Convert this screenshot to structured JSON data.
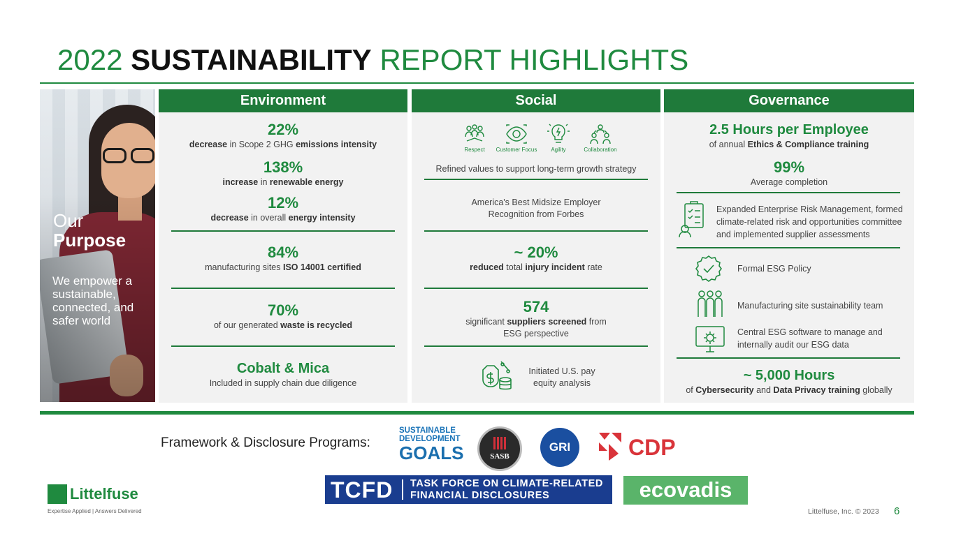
{
  "title": {
    "part1": "2022 ",
    "bold": "SUSTAINABILITY",
    "part2": " REPORT HIGHLIGHTS"
  },
  "purpose": {
    "line1": "Our",
    "line2": "Purpose",
    "text": "We empower a sustainable, connected, and safer world"
  },
  "environment": {
    "header": "Environment",
    "items": [
      {
        "value": "22%",
        "pre": "decrease",
        "mid": " in Scope 2 GHG ",
        "bold2": "emissions intensity",
        "post": ""
      },
      {
        "value": "138%",
        "pre": "increase",
        "mid": " in ",
        "bold2": "renewable energy",
        "post": ""
      },
      {
        "value": "12%",
        "pre": "decrease",
        "mid": " in overall ",
        "bold2": "energy intensity",
        "post": ""
      },
      {
        "value": "84%",
        "pre": "",
        "mid": "manufacturing sites ",
        "bold2": "ISO 14001 certified",
        "post": ""
      },
      {
        "value": "70%",
        "pre": "",
        "mid": "of our generated ",
        "bold2": "waste is recycled",
        "post": ""
      },
      {
        "value": "Cobalt & Mica",
        "pre": "",
        "mid": "Included in supply chain due diligence",
        "bold2": "",
        "post": ""
      }
    ]
  },
  "social": {
    "header": "Social",
    "values": [
      {
        "label": "Respect",
        "icon": "respect-icon"
      },
      {
        "label": "Customer Focus",
        "icon": "customer-focus-icon"
      },
      {
        "label": "Agility",
        "icon": "agility-icon"
      },
      {
        "label": "Collaboration",
        "icon": "collaboration-icon"
      }
    ],
    "values_caption": "Refined values to support long-term growth strategy",
    "forbes": "America's Best Midsize Employer Recognition from Forbes",
    "injury": {
      "value": "~ 20%",
      "pre": "reduced",
      "mid": " total ",
      "bold2": "injury incident",
      "post": " rate"
    },
    "suppliers": {
      "value": "574",
      "pre": "significant ",
      "bold": "suppliers screened",
      "post": " from ESG perspective"
    },
    "pay_equity": "Initiated U.S. pay equity analysis"
  },
  "governance": {
    "header": "Governance",
    "hours": {
      "value": "2.5 Hours per Employee",
      "pre": "of annual ",
      "bold": "Ethics & Compliance training"
    },
    "completion": {
      "value": "99%",
      "label": "Average completion"
    },
    "erm": "Expanded Enterprise Risk Management, formed climate-related risk and opportunities committee and implemented supplier assessments",
    "policy": "Formal ESG Policy",
    "team": "Manufacturing site sustainability team",
    "software": "Central ESG software to manage and internally audit our ESG data",
    "cyber": {
      "value": "~ 5,000 Hours",
      "pre": "of ",
      "bold1": "Cybersecurity",
      "mid": " and ",
      "bold2": "Data Privacy training",
      "post": " globally"
    }
  },
  "frameworks": {
    "label": "Framework & Disclosure Programs:",
    "sdg": {
      "line1": "SUSTAINABLE",
      "line2": "DEVELOPMENT",
      "line3": "GOALS"
    },
    "sasb": "SASB",
    "gri": "GRI",
    "cdp": "CDP",
    "tcfd": {
      "short": "TCFD",
      "line1": "TASK FORCE ON CLIMATE-RELATED",
      "line2": "FINANCIAL DISCLOSURES"
    },
    "ecovadis": "ecovadis"
  },
  "footer": {
    "brand": "Littelfuse",
    "tagline": "Expertise Applied | Answers Delivered",
    "copyright": "Littelfuse, Inc. © 2023",
    "page": "6"
  },
  "colors": {
    "green": "#1f8a3f",
    "dark_green": "#1f7a3a",
    "panel": "#f2f2f2"
  }
}
